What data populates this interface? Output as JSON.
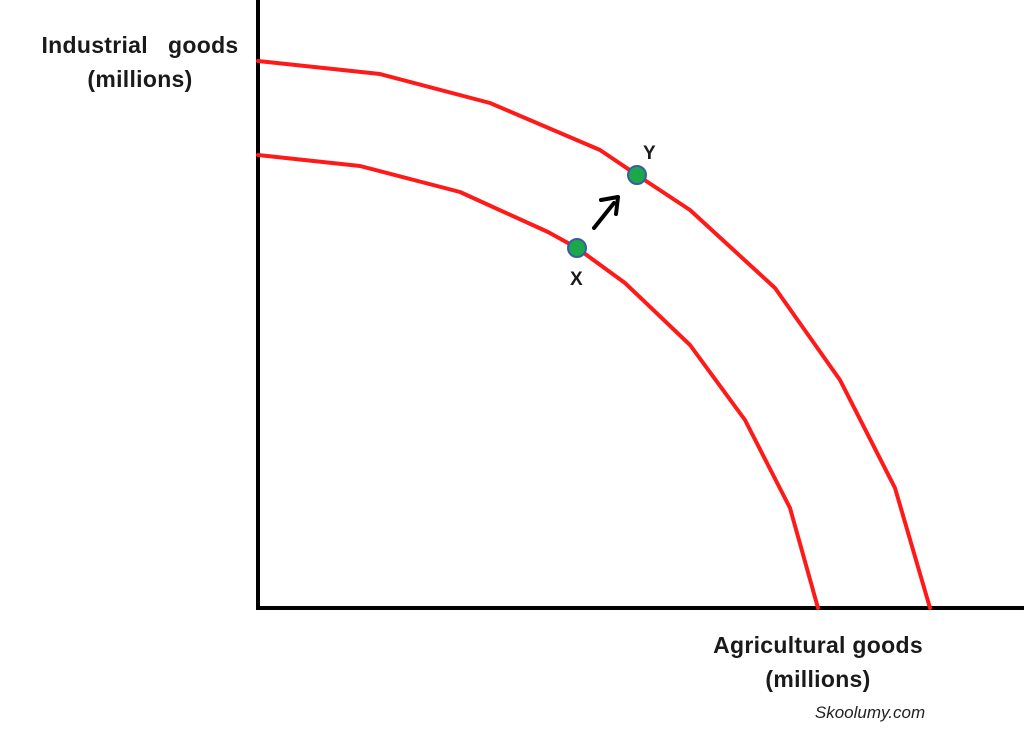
{
  "y_axis_label": {
    "line1": "Industrial   goods",
    "line2": "(millions)"
  },
  "x_axis_label": {
    "line1": "Agricultural goods",
    "line2": "(millions)"
  },
  "points": {
    "x_label": "X",
    "y_label": "Y"
  },
  "watermark": "Skoolumy.com",
  "colors": {
    "curve": "#ff1a1a",
    "point_fill": "#1aa84b",
    "point_stroke": "#3b5aa8",
    "axis": "#000000"
  }
}
